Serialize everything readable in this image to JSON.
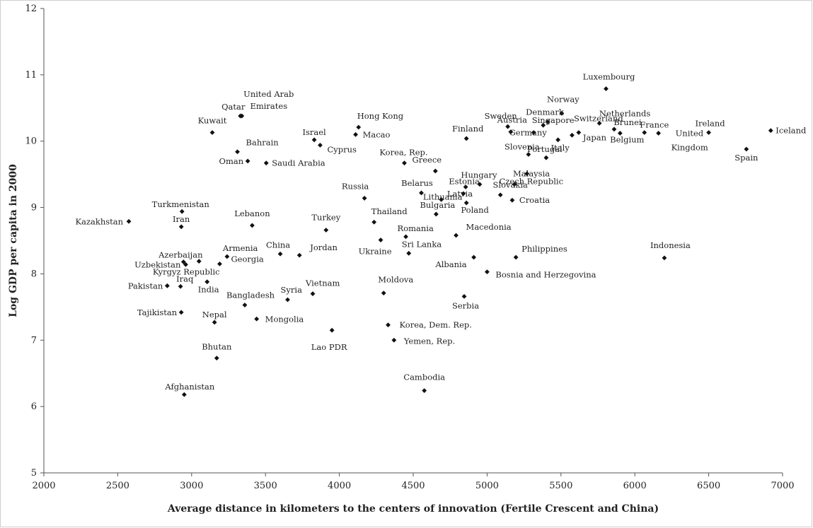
{
  "chart_data": {
    "type": "scatter",
    "xlabel": "Average distance in kilometers to the centers of innovation (Fertile Crescent and China)",
    "ylabel": "Log GDP per capita in 2000",
    "xlim": [
      2000,
      7000
    ],
    "ylim": [
      5,
      12
    ],
    "x_ticks": [
      2000,
      2500,
      3000,
      3500,
      4000,
      4500,
      5000,
      5500,
      6000,
      6500,
      7000
    ],
    "y_ticks": [
      5,
      6,
      7,
      8,
      9,
      10,
      11,
      12
    ],
    "grid": false,
    "marker": "diamond",
    "marker_color": "#111111",
    "points": [
      {
        "label": "Kazakhstan",
        "x": 2575,
        "y": 8.79
      },
      {
        "label": "Turkmenistan",
        "x": 2935,
        "y": 8.94
      },
      {
        "label": "Iran",
        "x": 2930,
        "y": 8.71
      },
      {
        "label": "Azerbaijan",
        "x": 2945,
        "y": 8.18
      },
      {
        "label": "Uzbekistan",
        "x": 2960,
        "y": 8.14
      },
      {
        "label": "Kyrgyz Republic",
        "x": 3050,
        "y": 8.19
      },
      {
        "label": "Pakistan",
        "x": 2835,
        "y": 7.82
      },
      {
        "label": "Iraq",
        "x": 2925,
        "y": 7.81
      },
      {
        "label": "Tajikistan",
        "x": 2930,
        "y": 7.42
      },
      {
        "label": "India",
        "x": 3105,
        "y": 7.88
      },
      {
        "label": "Armenia",
        "x": 3240,
        "y": 8.26
      },
      {
        "label": "Georgia",
        "x": 3190,
        "y": 8.15
      },
      {
        "label": "Nepal",
        "x": 3155,
        "y": 7.27
      },
      {
        "label": "Bhutan",
        "x": 3170,
        "y": 6.73
      },
      {
        "label": "Afghanistan",
        "x": 2950,
        "y": 6.18
      },
      {
        "label": "Kuwait",
        "x": 3140,
        "y": 10.13
      },
      {
        "label": "Qatar",
        "x": 3330,
        "y": 10.38
      },
      {
        "label": "United Arab Emirates",
        "x": 3340,
        "y": 10.38
      },
      {
        "label": "Bahrain",
        "x": 3310,
        "y": 9.84
      },
      {
        "label": "Oman",
        "x": 3380,
        "y": 9.7
      },
      {
        "label": "Saudi Arabia",
        "x": 3505,
        "y": 9.67
      },
      {
        "label": "Lebanon",
        "x": 3410,
        "y": 8.73
      },
      {
        "label": "China",
        "x": 3600,
        "y": 8.3
      },
      {
        "label": "Jordan",
        "x": 3730,
        "y": 8.28
      },
      {
        "label": "Bangladesh",
        "x": 3360,
        "y": 7.53
      },
      {
        "label": "Mongolia",
        "x": 3440,
        "y": 7.32
      },
      {
        "label": "Syria",
        "x": 3650,
        "y": 7.61
      },
      {
        "label": "Vietnam",
        "x": 3820,
        "y": 7.7
      },
      {
        "label": "Lao PDR",
        "x": 3950,
        "y": 7.15
      },
      {
        "label": "Israel",
        "x": 3830,
        "y": 10.02
      },
      {
        "label": "Cyprus",
        "x": 3870,
        "y": 9.94
      },
      {
        "label": "Turkey",
        "x": 3910,
        "y": 8.66
      },
      {
        "label": "Hong Kong",
        "x": 4130,
        "y": 10.21
      },
      {
        "label": "Macao",
        "x": 4110,
        "y": 10.1
      },
      {
        "label": "Russia",
        "x": 4170,
        "y": 9.14
      },
      {
        "label": "Thailand",
        "x": 4235,
        "y": 8.78
      },
      {
        "label": "Ukraine",
        "x": 4280,
        "y": 8.51
      },
      {
        "label": "Moldova",
        "x": 4300,
        "y": 7.71
      },
      {
        "label": "Korea, Dem. Rep.",
        "x": 4330,
        "y": 7.23
      },
      {
        "label": "Yemen, Rep.",
        "x": 4370,
        "y": 7.0
      },
      {
        "label": "Korea, Rep.",
        "x": 4440,
        "y": 9.67
      },
      {
        "label": "Romania",
        "x": 4450,
        "y": 8.56
      },
      {
        "label": "Sri Lanka",
        "x": 4470,
        "y": 8.31
      },
      {
        "label": "Cambodia",
        "x": 4575,
        "y": 6.24
      },
      {
        "label": "Greece",
        "x": 4650,
        "y": 9.55
      },
      {
        "label": "Belarus",
        "x": 4555,
        "y": 9.22
      },
      {
        "label": "Lithuania",
        "x": 4690,
        "y": 9.12
      },
      {
        "label": "Bulgaria",
        "x": 4655,
        "y": 8.9
      },
      {
        "label": "Latvia",
        "x": 4840,
        "y": 9.21
      },
      {
        "label": "Estonia",
        "x": 4855,
        "y": 9.31
      },
      {
        "label": "Hungary",
        "x": 4950,
        "y": 9.35
      },
      {
        "label": "Poland",
        "x": 4860,
        "y": 9.07
      },
      {
        "label": "Macedonia",
        "x": 4790,
        "y": 8.58
      },
      {
        "label": "Albania",
        "x": 4910,
        "y": 8.25
      },
      {
        "label": "Serbia",
        "x": 4845,
        "y": 7.66
      },
      {
        "label": "Finland",
        "x": 4860,
        "y": 10.04
      },
      {
        "label": "Bosnia and Herzegovina",
        "x": 5000,
        "y": 8.03
      },
      {
        "label": "Slovakia",
        "x": 5090,
        "y": 9.19
      },
      {
        "label": "Croatia",
        "x": 5170,
        "y": 9.11
      },
      {
        "label": "Malaysia",
        "x": 5185,
        "y": 9.35
      },
      {
        "label": "Czech Republic",
        "x": 5270,
        "y": 9.51
      },
      {
        "label": "Slovenia",
        "x": 5280,
        "y": 9.8
      },
      {
        "label": "Portugal",
        "x": 5400,
        "y": 9.75
      },
      {
        "label": "Philippines",
        "x": 5195,
        "y": 8.25
      },
      {
        "label": "Sweden",
        "x": 5140,
        "y": 10.22
      },
      {
        "label": "Austria",
        "x": 5160,
        "y": 10.14
      },
      {
        "label": "Germany",
        "x": 5315,
        "y": 10.13
      },
      {
        "label": "Singapore",
        "x": 5380,
        "y": 10.24
      },
      {
        "label": "Denmark",
        "x": 5410,
        "y": 10.29
      },
      {
        "label": "Italy",
        "x": 5480,
        "y": 10.02
      },
      {
        "label": "Norway",
        "x": 5505,
        "y": 10.42
      },
      {
        "label": "Japan",
        "x": 5575,
        "y": 10.09
      },
      {
        "label": "Switzerland",
        "x": 5620,
        "y": 10.13
      },
      {
        "label": "Luxembourg",
        "x": 5805,
        "y": 10.79
      },
      {
        "label": "Netherlands",
        "x": 5760,
        "y": 10.27
      },
      {
        "label": "Brunei",
        "x": 5860,
        "y": 10.18
      },
      {
        "label": "Belgium",
        "x": 5900,
        "y": 10.12
      },
      {
        "label": "France",
        "x": 6065,
        "y": 10.13
      },
      {
        "label": "United Kingdom",
        "x": 6160,
        "y": 10.12
      },
      {
        "label": "Indonesia",
        "x": 6200,
        "y": 8.24
      },
      {
        "label": "Ireland",
        "x": 6500,
        "y": 10.13
      },
      {
        "label": "Spain",
        "x": 6755,
        "y": 9.88
      },
      {
        "label": "Iceland",
        "x": 6920,
        "y": 10.16
      }
    ]
  }
}
